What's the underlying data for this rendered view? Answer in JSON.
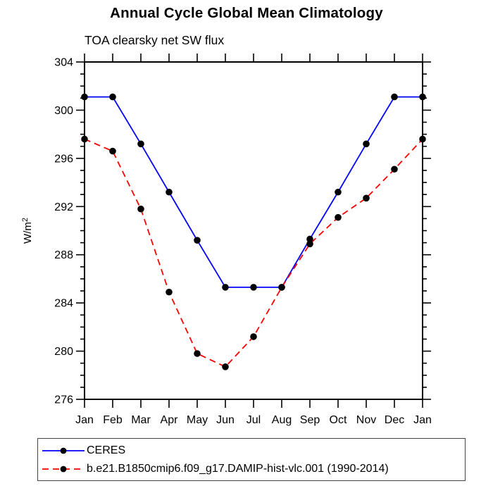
{
  "chart_data": {
    "type": "line",
    "title": "Annual Cycle Global Mean Climatology",
    "subtitle": "TOA clearsky net SW flux",
    "ylabel": "W/m²",
    "xlabel": "",
    "categories": [
      "Jan",
      "Feb",
      "Mar",
      "Apr",
      "May",
      "Jun",
      "Jul",
      "Aug",
      "Sep",
      "Oct",
      "Nov",
      "Dec",
      "Jan"
    ],
    "ylim": [
      276,
      304
    ],
    "yticks": [
      276,
      280,
      284,
      288,
      292,
      296,
      300,
      304
    ],
    "ytick_major_interval": 4,
    "ytick_minor_interval": 1,
    "grid": false,
    "legend_position": "bottom",
    "axis_color": "#000000",
    "series": [
      {
        "name": "CERES",
        "color": "#0000ff",
        "line_style": "solid",
        "marker": "circle",
        "marker_color": "#000000",
        "values": [
          301.1,
          301.1,
          297.2,
          293.2,
          289.2,
          285.3,
          285.3,
          285.3,
          289.3,
          293.2,
          297.2,
          301.1,
          301.1
        ]
      },
      {
        "name": "b.e21.B1850cmip6.f09_g17.DAMIP-hist-vlc.001 (1990-2014)",
        "color": "#ff0000",
        "line_style": "dashed",
        "marker": "circle",
        "marker_color": "#000000",
        "values": [
          297.6,
          296.6,
          291.8,
          284.9,
          279.8,
          278.7,
          281.2,
          285.3,
          288.9,
          291.1,
          292.7,
          295.1,
          297.6
        ]
      }
    ]
  }
}
